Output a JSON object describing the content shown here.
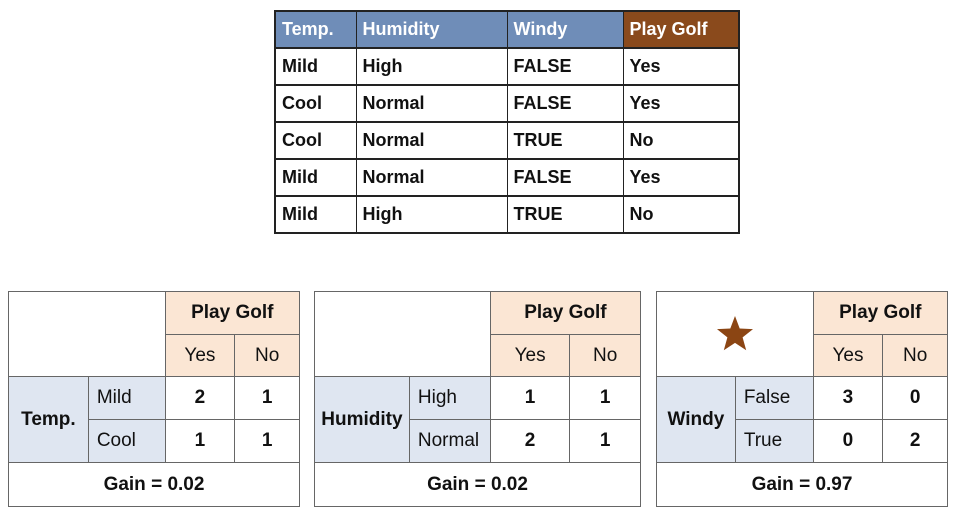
{
  "data_table": {
    "headers": [
      "Temp.",
      "Humidity",
      "Windy",
      "Play Golf"
    ],
    "rows": [
      [
        "Mild",
        "High",
        "FALSE",
        "Yes"
      ],
      [
        "Cool",
        "Normal",
        "FALSE",
        "Yes"
      ],
      [
        "Cool",
        "Normal",
        "TRUE",
        "No"
      ],
      [
        "Mild",
        "Normal",
        "FALSE",
        "Yes"
      ],
      [
        "Mild",
        "High",
        "TRUE",
        "No"
      ]
    ]
  },
  "contingency_tables": [
    {
      "target_label": "Play Golf",
      "yes_label": "Yes",
      "no_label": "No",
      "attribute": "Temp.",
      "rows": [
        {
          "value": "Mild",
          "yes": "2",
          "no": "1"
        },
        {
          "value": "Cool",
          "yes": "1",
          "no": "1"
        }
      ],
      "gain": "Gain = 0.02"
    },
    {
      "target_label": "Play Golf",
      "yes_label": "Yes",
      "no_label": "No",
      "attribute": "Humidity",
      "rows": [
        {
          "value": "High",
          "yes": "1",
          "no": "1"
        },
        {
          "value": "Normal",
          "yes": "2",
          "no": "1"
        }
      ],
      "gain": "Gain = 0.02"
    },
    {
      "target_label": "Play Golf",
      "yes_label": "Yes",
      "no_label": "No",
      "attribute": "Windy",
      "rows": [
        {
          "value": "False",
          "yes": "3",
          "no": "0"
        },
        {
          "value": "True",
          "yes": "0",
          "no": "2"
        }
      ],
      "gain": "Gain = 0.97"
    }
  ],
  "best_split_marker": "star-icon",
  "colors": {
    "header_blue": "#6f8db8",
    "header_brown": "#8a4a1c",
    "peach": "#fbe6d4",
    "light_blue": "#dfe6f1",
    "star": "#8b4513"
  }
}
